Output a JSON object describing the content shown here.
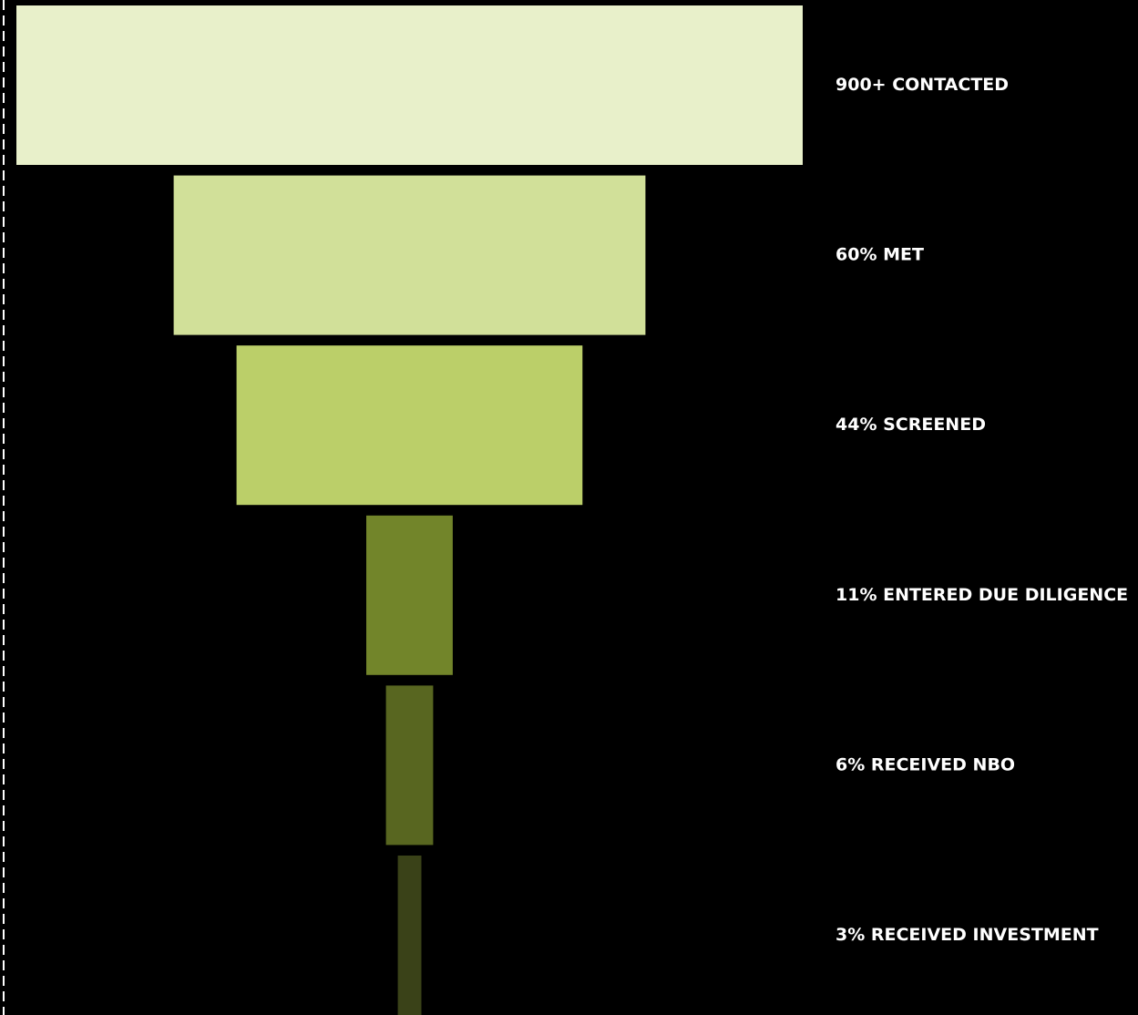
{
  "chart_data": {
    "type": "funnel",
    "stages": [
      {
        "label": "900+ CONTACTED",
        "value": 100,
        "color": "#E8F0CA"
      },
      {
        "label": "60% MET",
        "value": 60,
        "color": "#D1E099"
      },
      {
        "label": "44% SCREENED",
        "value": 44,
        "color": "#BBCF69"
      },
      {
        "label": "11% ENTERED DUE DILIGENCE",
        "value": 11,
        "color": "#72852A"
      },
      {
        "label": "6% RECEIVED NBO",
        "value": 6,
        "color": "#586620"
      },
      {
        "label": "3% RECEIVED INVESTMENT",
        "value": 3,
        "color": "#3A4218"
      }
    ],
    "colors": {
      "background": "#000000",
      "label": "#FFFFFF",
      "axis_line": "#FFFFFF"
    }
  }
}
